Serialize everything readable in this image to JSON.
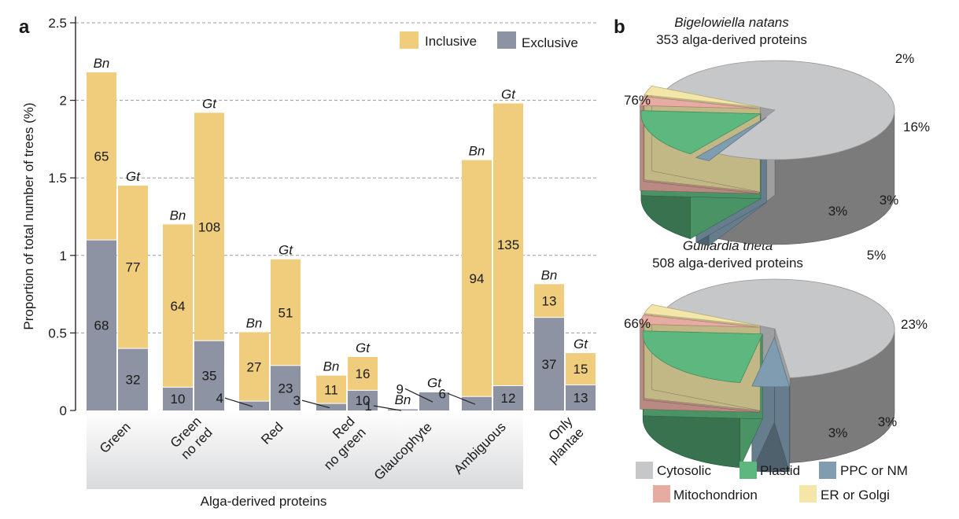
{
  "panel_a_label": "a",
  "panel_b_label": "b",
  "chart_data": [
    {
      "type": "bar",
      "stacked": true,
      "ylabel": "Proportion of total number of trees (%)",
      "xlabel": "Alga-derived proteins",
      "ylim": [
        0,
        2.5
      ],
      "yticks": [
        0,
        0.5,
        1,
        1.5,
        2,
        2.5
      ],
      "ytick_labels": [
        "0",
        "0.5",
        "1",
        "1.5",
        "2",
        "2.5"
      ],
      "grid": "horizontal dashed",
      "legend_position": "top-right",
      "categories": [
        "Green",
        "Green no red",
        "Red",
        "Red no green",
        "Glaucophyte",
        "Ambiguous",
        "Only plantae"
      ],
      "category_lines": [
        [
          "Green"
        ],
        [
          "Green",
          "no red"
        ],
        [
          "Red"
        ],
        [
          "Red",
          "no green"
        ],
        [
          "Glaucophyte"
        ],
        [
          "Ambiguous"
        ],
        [
          "Only",
          "plantae"
        ]
      ],
      "organisms": [
        "Bn",
        "Gt"
      ],
      "series": [
        {
          "name": "Exclusive",
          "color": "#8e93a3",
          "Bn": [
            1.1,
            0.15,
            0.06,
            0.045,
            0.01,
            0.09,
            0.6
          ],
          "Gt": [
            0.4,
            0.45,
            0.29,
            0.13,
            0.12,
            0.16,
            0.165
          ],
          "labels_Bn": [
            "68",
            "10",
            "4",
            "3",
            "1",
            "6",
            "37"
          ],
          "labels_Gt": [
            "32",
            "35",
            "23",
            "10",
            "9",
            "12",
            "13"
          ]
        },
        {
          "name": "Inclusive",
          "color": "#efcd7c",
          "Bn": [
            1.08,
            1.05,
            0.445,
            0.18,
            0,
            1.525,
            0.215
          ],
          "Gt": [
            1.05,
            1.47,
            0.685,
            0.215,
            0,
            1.82,
            0.205
          ],
          "labels_Bn": [
            "65",
            "64",
            "27",
            "11",
            "",
            "94",
            "13"
          ],
          "labels_Gt": [
            "77",
            "108",
            "51",
            "16",
            "",
            "135",
            "15"
          ]
        }
      ]
    },
    {
      "type": "pie",
      "title": "Bigelowiella natans",
      "subtitle": "353 alga-derived proteins",
      "slices": [
        {
          "name": "Cytosolic",
          "value": 76,
          "label": "76%",
          "color": "#c6c7c8"
        },
        {
          "name": "PPC or NM",
          "value": 2,
          "label": "2%",
          "color": "#7f9cb0"
        },
        {
          "name": "Plastid",
          "value": 16,
          "label": "16%",
          "color": "#5cb87e"
        },
        {
          "name": "Mitochondrion",
          "value": 3,
          "label": "3%",
          "color": "#e7aca1"
        },
        {
          "name": "ER or Golgi",
          "value": 3,
          "label": "3%",
          "color": "#f3e6a8"
        }
      ]
    },
    {
      "type": "pie",
      "title": "Guillardia theta",
      "subtitle": "508 alga-derived proteins",
      "slices": [
        {
          "name": "Cytosolic",
          "value": 66,
          "label": "66%",
          "color": "#c6c7c8"
        },
        {
          "name": "PPC or NM",
          "value": 5,
          "label": "5%",
          "color": "#7f9cb0"
        },
        {
          "name": "Plastid",
          "value": 23,
          "label": "23%",
          "color": "#5cb87e"
        },
        {
          "name": "Mitochondrion",
          "value": 3,
          "label": "3%",
          "color": "#e7aca1"
        },
        {
          "name": "ER or Golgi",
          "value": 3,
          "label": "3%",
          "color": "#f3e6a8"
        }
      ]
    }
  ],
  "pie_legend": [
    {
      "name": "Cytosolic",
      "color": "#c6c7c8"
    },
    {
      "name": "Plastid",
      "color": "#5cb87e"
    },
    {
      "name": "PPC or NM",
      "color": "#7f9cb0"
    },
    {
      "name": "Mitochondrion",
      "color": "#e7aca1"
    },
    {
      "name": "ER or Golgi",
      "color": "#f3e6a8"
    }
  ]
}
